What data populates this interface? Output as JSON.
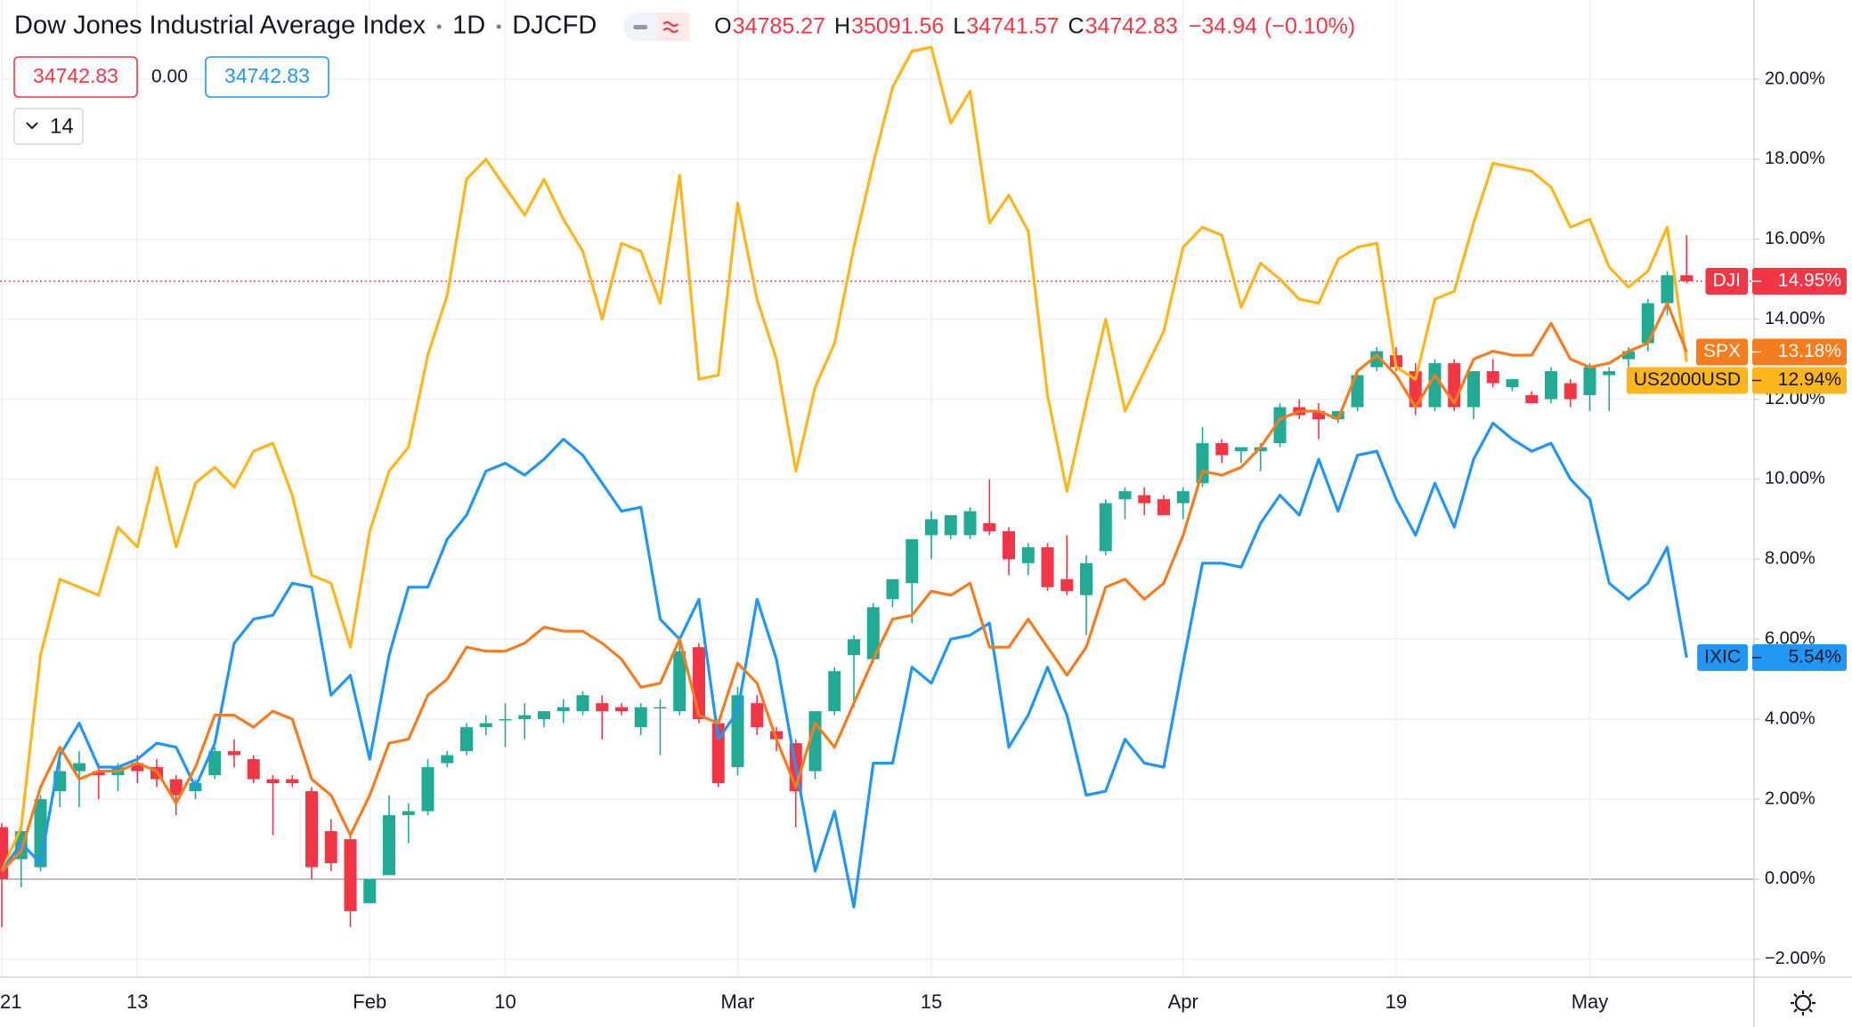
{
  "header": {
    "title": "Dow Jones Industrial Average Index",
    "interval": "1D",
    "symbol": "DJCFD",
    "ohlc": [
      {
        "key": "O",
        "value": 34785.27
      },
      {
        "key": "H",
        "value": 35091.56
      },
      {
        "key": "L",
        "value": 34741.57
      },
      {
        "key": "C",
        "value": 34742.83
      }
    ],
    "change": "−34.94",
    "change_pct": "(−0.10%)",
    "sell": 34742.83,
    "spread": "0.00",
    "buy": 34742.83,
    "indicators": 14
  },
  "chart_data": {
    "type": "candlestick",
    "name": "DJI",
    "last_label": "14.95%",
    "up_color": "#22ab94",
    "down_color": "#f23645",
    "categories": [
      "21",
      null,
      null,
      null,
      null,
      null,
      null,
      "13",
      null,
      null,
      null,
      null,
      null,
      null,
      null,
      null,
      null,
      null,
      null,
      "Feb",
      null,
      null,
      null,
      null,
      null,
      null,
      "10",
      null,
      null,
      null,
      null,
      null,
      null,
      null,
      null,
      null,
      null,
      null,
      "Mar",
      null,
      null,
      null,
      null,
      null,
      null,
      null,
      null,
      null,
      "15",
      null,
      null,
      null,
      null,
      null,
      null,
      null,
      null,
      null,
      null,
      null,
      null,
      "Apr",
      null,
      null,
      null,
      null,
      null,
      null,
      null,
      null,
      null,
      null,
      "19",
      null,
      null,
      null,
      null,
      null,
      null,
      null,
      null,
      null,
      "May",
      null,
      null,
      null,
      null,
      null
    ],
    "open": [
      1.3,
      0.5,
      0.3,
      2.2,
      2.7,
      2.7,
      2.6,
      2.9,
      2.8,
      2.5,
      2.2,
      2.6,
      3.2,
      3.0,
      2.5,
      2.5,
      2.2,
      1.2,
      1.0,
      -0.6,
      0.1,
      1.6,
      1.7,
      2.9,
      3.2,
      3.8,
      4.0,
      4.0,
      4.0,
      4.2,
      4.2,
      4.4,
      4.3,
      3.8,
      4.3,
      4.2,
      5.8,
      3.9,
      2.8,
      4.4,
      3.7,
      3.4,
      2.7,
      4.2,
      5.6,
      5.5,
      7.0,
      7.4,
      8.6,
      8.6,
      8.6,
      8.9,
      8.7,
      7.9,
      8.3,
      7.5,
      7.1,
      8.2,
      9.5,
      9.6,
      9.5,
      9.4,
      9.9,
      10.9,
      10.7,
      10.7,
      10.9,
      11.8,
      11.7,
      11.5,
      11.8,
      12.8,
      13.1,
      12.7,
      11.8,
      12.9,
      11.8,
      12.7,
      12.3,
      12.1,
      12.0,
      12.4,
      12.1,
      12.6,
      13.0,
      13.4,
      14.4,
      15.1
    ],
    "high": [
      1.4,
      1.4,
      2.1,
      3.2,
      3.2,
      2.9,
      2.9,
      3.1,
      3.0,
      2.6,
      2.5,
      3.3,
      3.5,
      3.1,
      2.6,
      2.6,
      2.3,
      1.5,
      1.1,
      0.0,
      2.1,
      1.9,
      3.0,
      3.2,
      3.9,
      4.1,
      4.4,
      4.4,
      4.2,
      4.5,
      4.7,
      4.6,
      4.4,
      4.4,
      4.5,
      5.9,
      5.9,
      4.0,
      4.8,
      4.6,
      3.8,
      3.5,
      4.2,
      5.3,
      6.1,
      6.9,
      7.5,
      8.5,
      9.2,
      9.1,
      9.3,
      10.0,
      8.8,
      8.4,
      8.4,
      8.6,
      8.1,
      9.5,
      9.8,
      9.8,
      9.6,
      9.8,
      11.3,
      11.0,
      10.8,
      10.9,
      11.9,
      12.0,
      11.9,
      11.7,
      12.7,
      13.3,
      13.3,
      12.9,
      13.0,
      13.0,
      12.7,
      13.0,
      12.5,
      12.2,
      12.8,
      12.5,
      12.9,
      12.8,
      13.3,
      14.5,
      15.2,
      16.1
    ],
    "low": [
      -1.2,
      -0.2,
      0.2,
      1.8,
      1.8,
      2.0,
      2.2,
      2.4,
      2.3,
      1.6,
      2.0,
      2.5,
      2.8,
      2.4,
      1.1,
      2.3,
      0.0,
      0.2,
      -1.2,
      -0.6,
      0.1,
      0.9,
      1.6,
      2.8,
      3.1,
      3.6,
      3.3,
      3.5,
      3.8,
      3.9,
      4.1,
      3.5,
      4.1,
      3.6,
      3.1,
      4.1,
      3.9,
      2.3,
      2.6,
      3.6,
      3.2,
      1.3,
      2.5,
      4.1,
      4.3,
      5.4,
      6.8,
      6.4,
      8.0,
      8.5,
      8.5,
      8.6,
      7.6,
      7.6,
      7.2,
      7.1,
      6.1,
      8.1,
      9.0,
      9.1,
      9.1,
      9.0,
      9.8,
      10.4,
      10.4,
      10.2,
      10.8,
      11.5,
      11.0,
      11.4,
      11.7,
      12.7,
      12.7,
      11.6,
      11.7,
      11.7,
      11.5,
      12.3,
      12.2,
      11.9,
      11.9,
      11.8,
      11.7,
      11.7,
      12.8,
      13.2,
      14.1,
      14.9
    ],
    "close": [
      0.0,
      1.2,
      2.0,
      2.7,
      2.9,
      2.6,
      2.8,
      2.7,
      2.5,
      2.1,
      2.4,
      3.2,
      3.1,
      2.5,
      2.4,
      2.4,
      0.3,
      0.4,
      -0.8,
      0.0,
      1.6,
      1.7,
      2.8,
      3.1,
      3.8,
      3.9,
      4.0,
      4.1,
      4.2,
      4.3,
      4.6,
      4.2,
      4.2,
      4.3,
      4.3,
      5.7,
      4.0,
      2.4,
      4.6,
      3.8,
      3.5,
      2.2,
      4.2,
      5.2,
      6.0,
      6.8,
      7.5,
      8.5,
      9.0,
      9.1,
      9.2,
      8.7,
      8.0,
      8.3,
      7.3,
      7.2,
      7.9,
      9.4,
      9.7,
      9.4,
      9.1,
      9.7,
      10.9,
      10.6,
      10.8,
      10.8,
      11.8,
      11.6,
      11.5,
      11.7,
      12.6,
      13.2,
      12.8,
      11.8,
      12.9,
      11.8,
      12.7,
      12.4,
      12.5,
      11.9,
      12.7,
      12.0,
      12.8,
      12.7,
      13.2,
      14.4,
      15.1,
      14.95
    ],
    "overlays": [
      {
        "type": "line",
        "name": "US2000USD",
        "color": "#ffb51c",
        "text_color": "#131722",
        "last_label": "12.94%",
        "values": [
          0.2,
          1.3,
          5.6,
          7.5,
          7.3,
          7.1,
          8.8,
          8.3,
          10.3,
          8.3,
          9.9,
          10.3,
          9.8,
          10.7,
          10.9,
          9.6,
          7.6,
          7.4,
          5.8,
          8.7,
          10.2,
          10.8,
          13.1,
          14.6,
          17.5,
          18.0,
          17.3,
          16.6,
          17.5,
          16.5,
          15.7,
          14.0,
          15.9,
          15.7,
          14.4,
          17.6,
          12.5,
          12.6,
          16.9,
          14.5,
          13.0,
          10.2,
          12.3,
          13.4,
          15.8,
          17.9,
          19.8,
          20.7,
          20.8,
          18.9,
          19.7,
          16.4,
          17.1,
          16.2,
          12.1,
          9.7,
          11.9,
          14.0,
          11.7,
          12.7,
          13.7,
          15.8,
          16.3,
          16.1,
          14.3,
          15.4,
          15.0,
          14.5,
          14.4,
          15.5,
          15.8,
          15.9,
          12.8,
          12.5,
          14.5,
          14.7,
          16.4,
          17.9,
          17.8,
          17.7,
          17.3,
          16.3,
          16.5,
          15.3,
          14.8,
          15.2,
          16.3,
          12.94
        ]
      },
      {
        "type": "line",
        "name": "IXIC",
        "color": "#2196f3",
        "text_color": "#131722",
        "last_label": "5.54%",
        "values": [
          0.2,
          0.9,
          0.4,
          3.1,
          3.9,
          2.8,
          2.8,
          3.0,
          3.4,
          3.3,
          2.3,
          3.4,
          5.9,
          6.5,
          6.6,
          7.4,
          7.3,
          4.6,
          5.1,
          3.0,
          5.6,
          7.3,
          7.3,
          8.5,
          9.1,
          10.2,
          10.4,
          10.1,
          10.5,
          11.0,
          10.6,
          9.9,
          9.2,
          9.3,
          6.5,
          6.0,
          7.0,
          3.5,
          4.2,
          7.0,
          5.5,
          2.8,
          0.2,
          1.7,
          -0.7,
          2.9,
          2.9,
          5.3,
          4.9,
          6.0,
          6.1,
          6.4,
          3.3,
          4.1,
          5.3,
          4.1,
          2.1,
          2.2,
          3.5,
          2.9,
          2.8,
          5.4,
          7.9,
          7.9,
          7.8,
          8.9,
          9.6,
          9.1,
          10.5,
          9.2,
          10.6,
          10.7,
          9.5,
          8.6,
          9.9,
          8.8,
          10.5,
          11.4,
          11.0,
          10.7,
          10.9,
          10.0,
          9.5,
          7.4,
          7.0,
          7.4,
          8.3,
          5.54
        ]
      },
      {
        "type": "line",
        "name": "SPX",
        "color": "#f57c1f",
        "text_color": "#ffffff",
        "last_label": "13.18%",
        "values": [
          0.2,
          0.7,
          2.3,
          3.3,
          2.5,
          2.7,
          2.7,
          2.9,
          2.7,
          1.9,
          2.8,
          4.1,
          4.1,
          3.8,
          4.2,
          4.0,
          2.5,
          2.1,
          1.1,
          2.1,
          3.4,
          3.5,
          4.6,
          5.0,
          5.8,
          5.7,
          5.7,
          5.9,
          6.3,
          6.2,
          6.2,
          5.9,
          5.5,
          4.8,
          4.9,
          6.0,
          4.1,
          3.9,
          5.4,
          4.9,
          3.5,
          2.3,
          3.9,
          3.3,
          4.4,
          5.5,
          6.5,
          6.6,
          7.2,
          7.1,
          7.4,
          5.8,
          5.8,
          6.5,
          5.8,
          5.1,
          5.8,
          7.3,
          7.5,
          7.0,
          7.4,
          8.6,
          10.2,
          10.1,
          10.3,
          10.8,
          11.5,
          11.7,
          11.7,
          11.5,
          12.7,
          13.1,
          12.6,
          11.8,
          12.6,
          11.9,
          13.0,
          13.2,
          13.1,
          13.1,
          13.9,
          13.0,
          12.8,
          12.9,
          13.2,
          13.4,
          14.4,
          13.18
        ]
      }
    ],
    "ylim": [
      -2.45,
      21.98
    ],
    "yticks": [
      {
        "value": -2,
        "label": "−2.00%"
      },
      {
        "value": 0,
        "label": "0.00%"
      },
      {
        "value": 2,
        "label": "2.00%"
      },
      {
        "value": 4,
        "label": "4.00%"
      },
      {
        "value": 6,
        "label": "6.00%"
      },
      {
        "value": 8,
        "label": "8.00%"
      },
      {
        "value": 10,
        "label": "10.00%"
      },
      {
        "value": 12,
        "label": "12.00%"
      },
      {
        "value": 14,
        "label": "14.00%"
      },
      {
        "value": 16,
        "label": "16.00%"
      },
      {
        "value": 18,
        "label": "18.00%"
      },
      {
        "value": 20,
        "label": "20.00%"
      }
    ],
    "grid": true
  }
}
